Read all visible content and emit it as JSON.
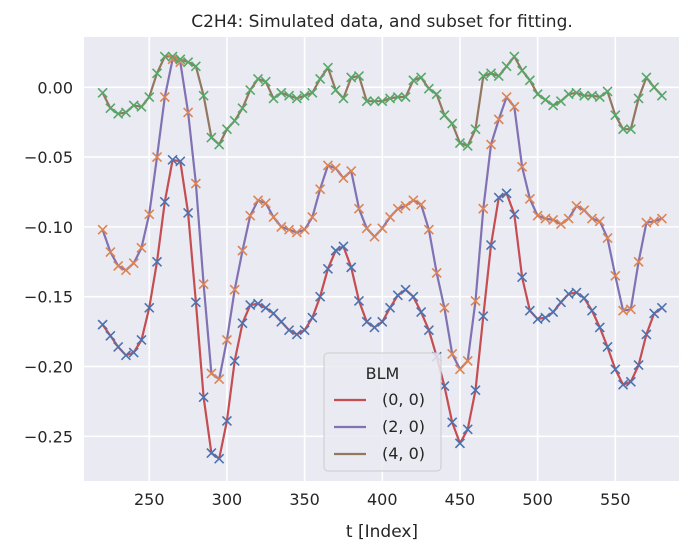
{
  "chart_data": {
    "type": "line",
    "title": "C2H4: Simulated data, and subset for fitting.",
    "xlabel": "t [Index]",
    "ylabel": "",
    "xlim": [
      208,
      591
    ],
    "ylim": [
      -0.282,
      0.036
    ],
    "xticks": [
      250,
      300,
      350,
      400,
      450,
      500,
      550
    ],
    "yticks": [
      0.0,
      -0.05,
      -0.1,
      -0.15,
      -0.2,
      -0.25
    ],
    "ytick_labels": [
      "0.00",
      "−0.05",
      "−0.10",
      "−0.15",
      "−0.20",
      "−0.25"
    ],
    "grid": true,
    "background": "#eaeaf2",
    "legend": {
      "title": "BLM",
      "position": "lower center"
    },
    "x": [
      220,
      225,
      230,
      235,
      240,
      245,
      250,
      255,
      260,
      265,
      270,
      275,
      280,
      285,
      290,
      295,
      300,
      305,
      310,
      315,
      320,
      325,
      330,
      335,
      340,
      345,
      350,
      355,
      360,
      365,
      370,
      375,
      380,
      385,
      390,
      395,
      400,
      405,
      410,
      415,
      420,
      425,
      430,
      435,
      440,
      445,
      450,
      455,
      460,
      465,
      470,
      475,
      480,
      485,
      490,
      495,
      500,
      505,
      510,
      515,
      520,
      525,
      530,
      535,
      540,
      545,
      550,
      555,
      560,
      565,
      570,
      575,
      580
    ],
    "series": [
      {
        "name": "(0, 0)",
        "color": "#c44e52",
        "marker_color": "#4c72b0",
        "values": [
          -0.17,
          -0.178,
          -0.186,
          -0.192,
          -0.19,
          -0.181,
          -0.158,
          -0.125,
          -0.082,
          -0.052,
          -0.053,
          -0.09,
          -0.154,
          -0.222,
          -0.262,
          -0.266,
          -0.239,
          -0.196,
          -0.169,
          -0.156,
          -0.155,
          -0.158,
          -0.162,
          -0.168,
          -0.174,
          -0.177,
          -0.174,
          -0.165,
          -0.15,
          -0.13,
          -0.117,
          -0.114,
          -0.129,
          -0.153,
          -0.168,
          -0.172,
          -0.168,
          -0.158,
          -0.149,
          -0.145,
          -0.15,
          -0.161,
          -0.174,
          -0.193,
          -0.214,
          -0.24,
          -0.255,
          -0.245,
          -0.217,
          -0.164,
          -0.113,
          -0.079,
          -0.076,
          -0.091,
          -0.136,
          -0.16,
          -0.166,
          -0.165,
          -0.161,
          -0.154,
          -0.148,
          -0.147,
          -0.151,
          -0.16,
          -0.172,
          -0.186,
          -0.202,
          -0.213,
          -0.211,
          -0.199,
          -0.177,
          -0.162,
          -0.158
        ]
      },
      {
        "name": "(2, 0)",
        "color": "#8172b3",
        "marker_color": "#dd8452",
        "values": [
          -0.102,
          -0.118,
          -0.128,
          -0.131,
          -0.126,
          -0.115,
          -0.091,
          -0.05,
          -0.007,
          0.02,
          0.018,
          -0.018,
          -0.069,
          -0.141,
          -0.205,
          -0.209,
          -0.181,
          -0.145,
          -0.117,
          -0.092,
          -0.081,
          -0.083,
          -0.093,
          -0.1,
          -0.102,
          -0.104,
          -0.102,
          -0.093,
          -0.073,
          -0.056,
          -0.058,
          -0.065,
          -0.06,
          -0.087,
          -0.101,
          -0.107,
          -0.101,
          -0.093,
          -0.087,
          -0.085,
          -0.081,
          -0.084,
          -0.102,
          -0.133,
          -0.158,
          -0.191,
          -0.202,
          -0.196,
          -0.153,
          -0.087,
          -0.041,
          -0.023,
          -0.007,
          -0.014,
          -0.057,
          -0.08,
          -0.092,
          -0.094,
          -0.095,
          -0.098,
          -0.094,
          -0.085,
          -0.088,
          -0.094,
          -0.096,
          -0.108,
          -0.135,
          -0.16,
          -0.159,
          -0.125,
          -0.097,
          -0.096,
          -0.094
        ]
      },
      {
        "name": "(4, 0)",
        "color": "#937860",
        "marker_color": "#55a868",
        "values": [
          -0.004,
          -0.015,
          -0.019,
          -0.018,
          -0.013,
          -0.014,
          -0.007,
          0.01,
          0.022,
          0.022,
          0.02,
          0.018,
          0.015,
          -0.006,
          -0.036,
          -0.041,
          -0.03,
          -0.024,
          -0.015,
          -0.002,
          0.006,
          0.004,
          -0.008,
          -0.004,
          -0.006,
          -0.008,
          -0.006,
          -0.004,
          0.006,
          0.014,
          -0.002,
          -0.008,
          0.007,
          0.008,
          -0.01,
          -0.01,
          -0.01,
          -0.008,
          -0.007,
          -0.007,
          0.005,
          0.007,
          -0.001,
          -0.005,
          -0.02,
          -0.026,
          -0.04,
          -0.042,
          -0.03,
          0.008,
          0.01,
          0.008,
          0.015,
          0.022,
          0.012,
          0.005,
          -0.005,
          -0.009,
          -0.013,
          -0.01,
          -0.005,
          -0.004,
          -0.006,
          -0.006,
          -0.007,
          -0.003,
          -0.02,
          -0.03,
          -0.03,
          -0.008,
          0.007,
          0.0,
          -0.006
        ]
      }
    ]
  }
}
